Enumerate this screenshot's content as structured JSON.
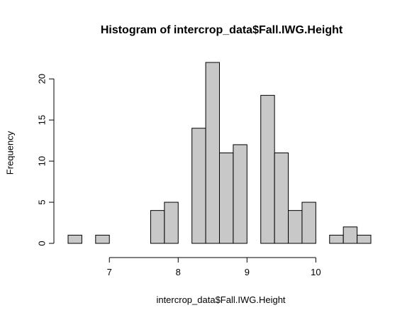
{
  "chart_data": {
    "type": "bar",
    "title": "Histogram of intercrop_data$Fall.IWG.Height",
    "xlabel": "intercrop_data$Fall.IWG.Height",
    "ylabel": "Frequency",
    "bin_width": 0.2,
    "bins": [
      {
        "x0": 6.4,
        "x1": 6.6,
        "count": 1
      },
      {
        "x0": 6.6,
        "x1": 6.8,
        "count": 0
      },
      {
        "x0": 6.8,
        "x1": 7.0,
        "count": 1
      },
      {
        "x0": 7.0,
        "x1": 7.2,
        "count": 0
      },
      {
        "x0": 7.2,
        "x1": 7.4,
        "count": 0
      },
      {
        "x0": 7.4,
        "x1": 7.6,
        "count": 0
      },
      {
        "x0": 7.6,
        "x1": 7.8,
        "count": 4
      },
      {
        "x0": 7.8,
        "x1": 8.0,
        "count": 5
      },
      {
        "x0": 8.0,
        "x1": 8.2,
        "count": 0
      },
      {
        "x0": 8.2,
        "x1": 8.4,
        "count": 14
      },
      {
        "x0": 8.4,
        "x1": 8.6,
        "count": 22
      },
      {
        "x0": 8.6,
        "x1": 8.8,
        "count": 11
      },
      {
        "x0": 8.8,
        "x1": 9.0,
        "count": 12
      },
      {
        "x0": 9.0,
        "x1": 9.2,
        "count": 0
      },
      {
        "x0": 9.2,
        "x1": 9.4,
        "count": 18
      },
      {
        "x0": 9.4,
        "x1": 9.6,
        "count": 11
      },
      {
        "x0": 9.6,
        "x1": 9.8,
        "count": 4
      },
      {
        "x0": 9.8,
        "x1": 10.0,
        "count": 5
      },
      {
        "x0": 10.0,
        "x1": 10.2,
        "count": 0
      },
      {
        "x0": 10.2,
        "x1": 10.4,
        "count": 1
      },
      {
        "x0": 10.4,
        "x1": 10.6,
        "count": 2
      },
      {
        "x0": 10.6,
        "x1": 10.8,
        "count": 1
      }
    ],
    "x_ticks": [
      7,
      8,
      9,
      10
    ],
    "y_ticks": [
      0,
      5,
      10,
      15,
      20
    ],
    "xlim": [
      6.4,
      10.8
    ],
    "ylim": [
      0,
      22
    ],
    "grid": false,
    "bar_fill": "#c8c8c8",
    "bar_stroke": "#000000"
  }
}
